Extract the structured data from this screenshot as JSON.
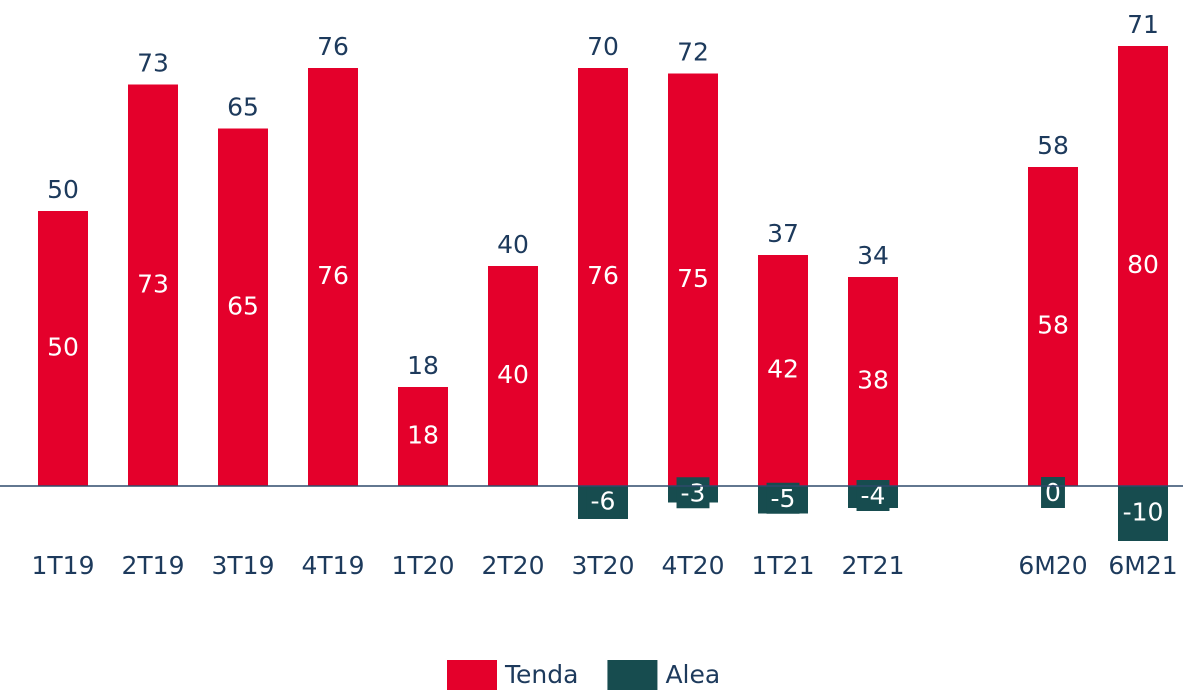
{
  "chart_data": {
    "type": "stacked_bar",
    "categories": [
      "1T19",
      "2T19",
      "3T19",
      "4T19",
      "1T20",
      "2T20",
      "3T20",
      "4T20",
      "1T21",
      "2T21",
      null,
      "6M20",
      "6M21"
    ],
    "series": [
      {
        "name": "Tenda",
        "color": "#e4002b",
        "values": [
          50,
          73,
          65,
          76,
          18,
          40,
          76,
          75,
          42,
          38,
          null,
          58,
          80
        ]
      },
      {
        "name": "Alea",
        "color": "#174c4f",
        "values": [
          null,
          null,
          null,
          null,
          null,
          null,
          -6,
          -3,
          -5,
          -4,
          null,
          0,
          -10
        ]
      }
    ],
    "totals": [
      50,
      73,
      65,
      76,
      18,
      40,
      70,
      72,
      37,
      34,
      null,
      58,
      71
    ],
    "ylim": [
      -15,
      85
    ],
    "legend": "bottom"
  }
}
